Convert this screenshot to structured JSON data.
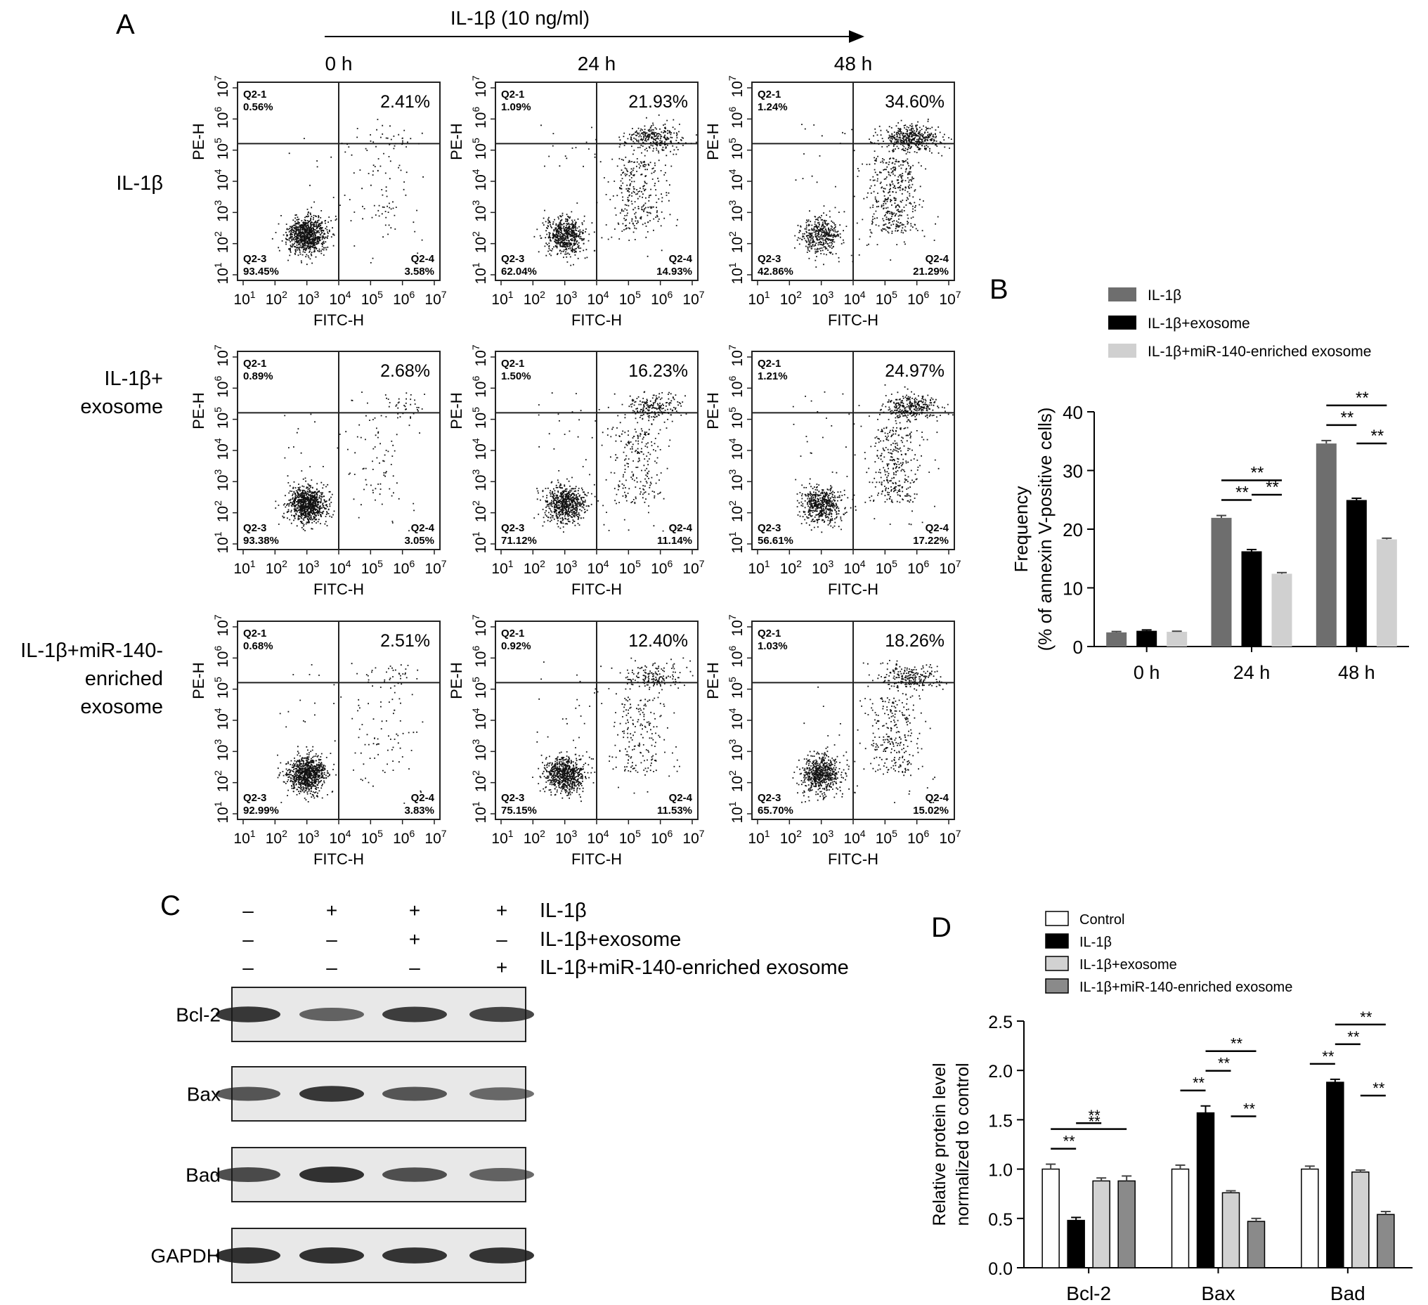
{
  "panel_letters": [
    "A",
    "B",
    "C",
    "D"
  ],
  "panel_a": {
    "treatment_label": "IL-1β (10 ng/ml)",
    "time_labels": [
      "0 h",
      "24 h",
      "48 h"
    ],
    "row_labels": [
      [
        "IL-1β"
      ],
      [
        "IL-1β+",
        "exosome"
      ],
      [
        "IL-1β+miR-140-",
        "enriched",
        "exosome"
      ]
    ],
    "x_axis_label": "FITC-H",
    "y_axis_label": "PE-H",
    "axis_ticks": [
      "10",
      "10",
      "10",
      "10",
      "10",
      "10",
      "10"
    ],
    "axis_exponents": [
      "1",
      "2",
      "3",
      "4",
      "5",
      "6",
      "7"
    ],
    "quadrant_names": [
      "Q2-1",
      "Q2-3",
      "Q2-4"
    ],
    "plots": [
      {
        "q1": "0.56%",
        "q2": "2.41%",
        "q3": "93.45%",
        "q4": "3.58%"
      },
      {
        "q1": "1.09%",
        "q2": "21.93%",
        "q3": "62.04%",
        "q4": "14.93%"
      },
      {
        "q1": "1.24%",
        "q2": "34.60%",
        "q3": "42.86%",
        "q4": "21.29%"
      },
      {
        "q1": "0.89%",
        "q2": "2.68%",
        "q3": "93.38%",
        "q4": "3.05%"
      },
      {
        "q1": "1.50%",
        "q2": "16.23%",
        "q3": "71.12%",
        "q4": "11.14%"
      },
      {
        "q1": "1.21%",
        "q2": "24.97%",
        "q3": "56.61%",
        "q4": "17.22%"
      },
      {
        "q1": "0.68%",
        "q2": "2.51%",
        "q3": "92.99%",
        "q4": "3.83%"
      },
      {
        "q1": "0.92%",
        "q2": "12.40%",
        "q3": "75.15%",
        "q4": "11.53%"
      },
      {
        "q1": "1.03%",
        "q2": "18.26%",
        "q3": "65.70%",
        "q4": "15.02%"
      }
    ]
  },
  "panel_c": {
    "row_labels": [
      "IL-1β",
      "IL-1β+exosome",
      "IL-1β+miR-140-enriched exosome"
    ],
    "signs": [
      [
        "–",
        "+",
        "+",
        "+"
      ],
      [
        "–",
        "–",
        "+",
        "–"
      ],
      [
        "–",
        "–",
        "–",
        "+"
      ]
    ],
    "band_labels": [
      "Bcl-2",
      "Bax",
      "Bad",
      "GAPDH"
    ],
    "band_intensities": [
      [
        0.85,
        0.5,
        0.8,
        0.75
      ],
      [
        0.6,
        0.85,
        0.6,
        0.45
      ],
      [
        0.7,
        0.9,
        0.65,
        0.5
      ],
      [
        0.9,
        0.9,
        0.88,
        0.88
      ]
    ]
  },
  "chart_data": [
    {
      "type": "bar",
      "panel": "B",
      "ylabel": "Frequency\n(% of annexin V-positive cells)",
      "categories": [
        "0 h",
        "24 h",
        "48 h"
      ],
      "ylim": [
        0,
        40
      ],
      "yticks": [
        0,
        10,
        20,
        30,
        40
      ],
      "legend_position": "top",
      "series": [
        {
          "name": "IL-1β",
          "color": "#6e6e6e",
          "values": [
            2.41,
            21.93,
            34.6
          ],
          "errors": [
            0.15,
            0.4,
            0.5
          ]
        },
        {
          "name": "IL-1β+exosome",
          "color": "#000000",
          "values": [
            2.68,
            16.23,
            24.97
          ],
          "errors": [
            0.15,
            0.3,
            0.3
          ]
        },
        {
          "name": "IL-1β+miR-140-enriched exosome",
          "color": "#d0d0d0",
          "values": [
            2.51,
            12.4,
            18.26
          ],
          "errors": [
            0.1,
            0.2,
            0.2
          ]
        }
      ],
      "significance": [
        {
          "group": 1,
          "from": 0,
          "to": 1,
          "label": "**"
        },
        {
          "group": 1,
          "from": 0,
          "to": 2,
          "label": "**"
        },
        {
          "group": 1,
          "from": 1,
          "to": 2,
          "label": "**"
        },
        {
          "group": 2,
          "from": 0,
          "to": 1,
          "label": "**"
        },
        {
          "group": 2,
          "from": 0,
          "to": 2,
          "label": "**"
        },
        {
          "group": 2,
          "from": 1,
          "to": 2,
          "label": "**"
        }
      ]
    },
    {
      "type": "bar",
      "panel": "D",
      "ylabel": "Relative protein level\nnormalized to control",
      "categories": [
        "Bcl-2",
        "Bax",
        "Bad"
      ],
      "ylim": [
        0,
        2.5
      ],
      "yticks": [
        0.0,
        0.5,
        1.0,
        1.5,
        2.0,
        2.5
      ],
      "legend_position": "top",
      "series": [
        {
          "name": "Control",
          "color": "#ffffff",
          "values": [
            1.0,
            1.0,
            1.0
          ],
          "errors": [
            0.05,
            0.04,
            0.03
          ]
        },
        {
          "name": "IL-1β",
          "color": "#000000",
          "values": [
            0.48,
            1.57,
            1.88
          ],
          "errors": [
            0.03,
            0.07,
            0.03
          ]
        },
        {
          "name": "IL-1β+exosome",
          "color": "#d2d2d2",
          "values": [
            0.88,
            0.76,
            0.97
          ],
          "errors": [
            0.03,
            0.02,
            0.02
          ]
        },
        {
          "name": "IL-1β+miR-140-enriched exosome",
          "color": "#8a8a8a",
          "values": [
            0.88,
            0.47,
            0.54
          ],
          "errors": [
            0.05,
            0.03,
            0.03
          ]
        }
      ],
      "significance": [
        {
          "group": 0,
          "from": 0,
          "to": 1,
          "label": "**"
        },
        {
          "group": 0,
          "from": 0,
          "to": 3,
          "label": "**"
        },
        {
          "group": 0,
          "from": 1,
          "to": 2,
          "label": "**"
        },
        {
          "group": 1,
          "from": 0,
          "to": 1,
          "label": "**"
        },
        {
          "group": 1,
          "from": 1,
          "to": 2,
          "label": "**"
        },
        {
          "group": 1,
          "from": 1,
          "to": 3,
          "label": "**"
        },
        {
          "group": 1,
          "from": 2,
          "to": 3,
          "label": "**"
        },
        {
          "group": 2,
          "from": 0,
          "to": 1,
          "label": "**"
        },
        {
          "group": 2,
          "from": 1,
          "to": 2,
          "label": "**"
        },
        {
          "group": 2,
          "from": 1,
          "to": 3,
          "label": "**"
        },
        {
          "group": 2,
          "from": 2,
          "to": 3,
          "label": "**"
        }
      ]
    }
  ]
}
